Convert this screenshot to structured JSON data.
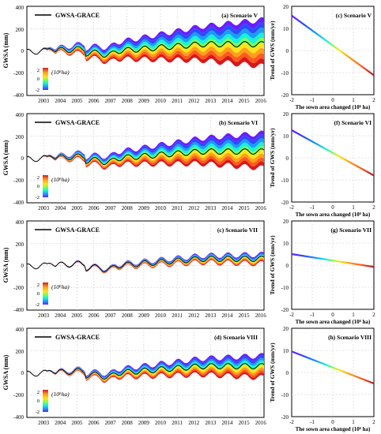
{
  "colors": {
    "line": "#000000",
    "grid": "#c8c8c8",
    "ramp": [
      "#d7191c",
      "#ff5a1f",
      "#ff9f1a",
      "#ffe31a",
      "#7fff50",
      "#16f2d8",
      "#1a9cff",
      "#2a4bff",
      "#6a1cff"
    ]
  },
  "chart_data": [
    {
      "id": "a",
      "type": "area",
      "title": "(a) Scenario V",
      "legend_label": "GWSA-GRACE",
      "ylabel": "GWSA (mm)",
      "ylim": [
        -400,
        400
      ],
      "yticks": [
        "400",
        "200",
        "0",
        "-200",
        "-400"
      ],
      "xticks": [
        "2003",
        "2004",
        "2005",
        "2006",
        "2007",
        "2008",
        "2009",
        "2010",
        "2011",
        "2012",
        "2013",
        "2014",
        "2015",
        "2016"
      ],
      "colorbar": {
        "label": "(10⁶ha)",
        "ticks": [
          "2",
          "0",
          "-2"
        ]
      },
      "band_upper_at_end": 220,
      "band_lower_at_end": -200
    },
    {
      "id": "c",
      "type": "line",
      "title": "(c) Scenario V",
      "ylabel": "Trend of GWS (mm/yr)",
      "xlabel": "The sown area changed (10⁶ ha)",
      "xlim": [
        -2,
        2
      ],
      "ylim": [
        -20,
        20
      ],
      "xticks": [
        "-2",
        "-1",
        "0",
        "1",
        "2"
      ],
      "yticks": [
        "20",
        "10",
        "0",
        "-10",
        "-20"
      ],
      "x": [
        -2,
        2
      ],
      "y": [
        15.8,
        -11.2
      ]
    },
    {
      "id": "b",
      "type": "area",
      "title": "(b) Scenario VI",
      "legend_label": "GWSA-GRACE",
      "ylabel": "GWSA (mm)",
      "ylim": [
        -400,
        400
      ],
      "yticks": [
        "400",
        "200",
        "0",
        "-200",
        "-400"
      ],
      "xticks": [
        "2003",
        "2004",
        "2005",
        "2006",
        "2007",
        "2008",
        "2009",
        "2010",
        "2011",
        "2012",
        "2013",
        "2014",
        "2015",
        "2016"
      ],
      "colorbar": {
        "label": "(10⁶ha)",
        "ticks": [
          "2",
          "0",
          "-2"
        ]
      },
      "band_upper_at_end": 165,
      "band_lower_at_end": -150
    },
    {
      "id": "f",
      "type": "line",
      "title": "(f) Scenario VI",
      "ylabel": "Trend of GWS (mm/yr)",
      "xlabel": "The sown area changed (10⁶ ha)",
      "xlim": [
        -2,
        2
      ],
      "ylim": [
        -20,
        20
      ],
      "xticks": [
        "-2",
        "-1",
        "0",
        "1",
        "2"
      ],
      "yticks": [
        "20",
        "10",
        "0",
        "-10",
        "-20"
      ],
      "x": [
        -2,
        2
      ],
      "y": [
        12.5,
        -8.0
      ]
    },
    {
      "id": "c2",
      "type": "area",
      "title": "(c) Scenario VII",
      "legend_label": "GWSA-GRACE",
      "ylabel": "GWSA (mm)",
      "ylim": [
        -400,
        400
      ],
      "yticks": [
        "400",
        "200",
        "0",
        "-200",
        "-400"
      ],
      "xticks": [
        "2003",
        "2004",
        "2005",
        "2006",
        "2007",
        "2008",
        "2009",
        "2010",
        "2011",
        "2012",
        "2013",
        "2014",
        "2015",
        "2016"
      ],
      "colorbar": {
        "label": "(10⁶ha)",
        "ticks": [
          "2",
          "0",
          "-2"
        ]
      },
      "band_upper_at_end": 40,
      "band_lower_at_end": -45
    },
    {
      "id": "g",
      "type": "line",
      "title": "(g) Scenario VII",
      "ylabel": "Trend of GWS (mm/yr)",
      "xlabel": "The sown area changed (10⁶ ha)",
      "xlim": [
        -2,
        2
      ],
      "ylim": [
        -20,
        20
      ],
      "xticks": [
        "-2",
        "-1",
        "0",
        "1",
        "2"
      ],
      "yticks": [
        "20",
        "10",
        "0",
        "-10",
        "-20"
      ],
      "x": [
        -2,
        2
      ],
      "y": [
        5.0,
        -0.8
      ]
    },
    {
      "id": "d",
      "type": "area",
      "title": "(d) Scenario VIII",
      "legend_label": "GWSA-GRACE",
      "ylabel": "GWSA (mm)",
      "ylim": [
        -400,
        400
      ],
      "yticks": [
        "400",
        "200",
        "0",
        "-200",
        "-400"
      ],
      "xticks": [
        "2003",
        "2004",
        "2005",
        "2006",
        "2007",
        "2008",
        "2009",
        "2010",
        "2011",
        "2012",
        "2013",
        "2014",
        "2015",
        "2016"
      ],
      "colorbar": {
        "label": "(10⁶ha)",
        "ticks": [
          "2",
          "0",
          "-2"
        ]
      },
      "band_upper_at_end": 95,
      "band_lower_at_end": -105
    },
    {
      "id": "h",
      "type": "line",
      "title": "(h) Scenario VIII",
      "ylabel": "Trend of GWS (mm/yr)",
      "xlabel": "The sown area changed (10⁶ ha)",
      "xlim": [
        -2,
        2
      ],
      "ylim": [
        -20,
        20
      ],
      "xticks": [
        "-2",
        "-1",
        "0",
        "1",
        "2"
      ],
      "yticks": [
        "20",
        "10",
        "0",
        "-10",
        "-20"
      ],
      "x": [
        -2,
        2
      ],
      "y": [
        9.5,
        -5.0
      ]
    }
  ]
}
